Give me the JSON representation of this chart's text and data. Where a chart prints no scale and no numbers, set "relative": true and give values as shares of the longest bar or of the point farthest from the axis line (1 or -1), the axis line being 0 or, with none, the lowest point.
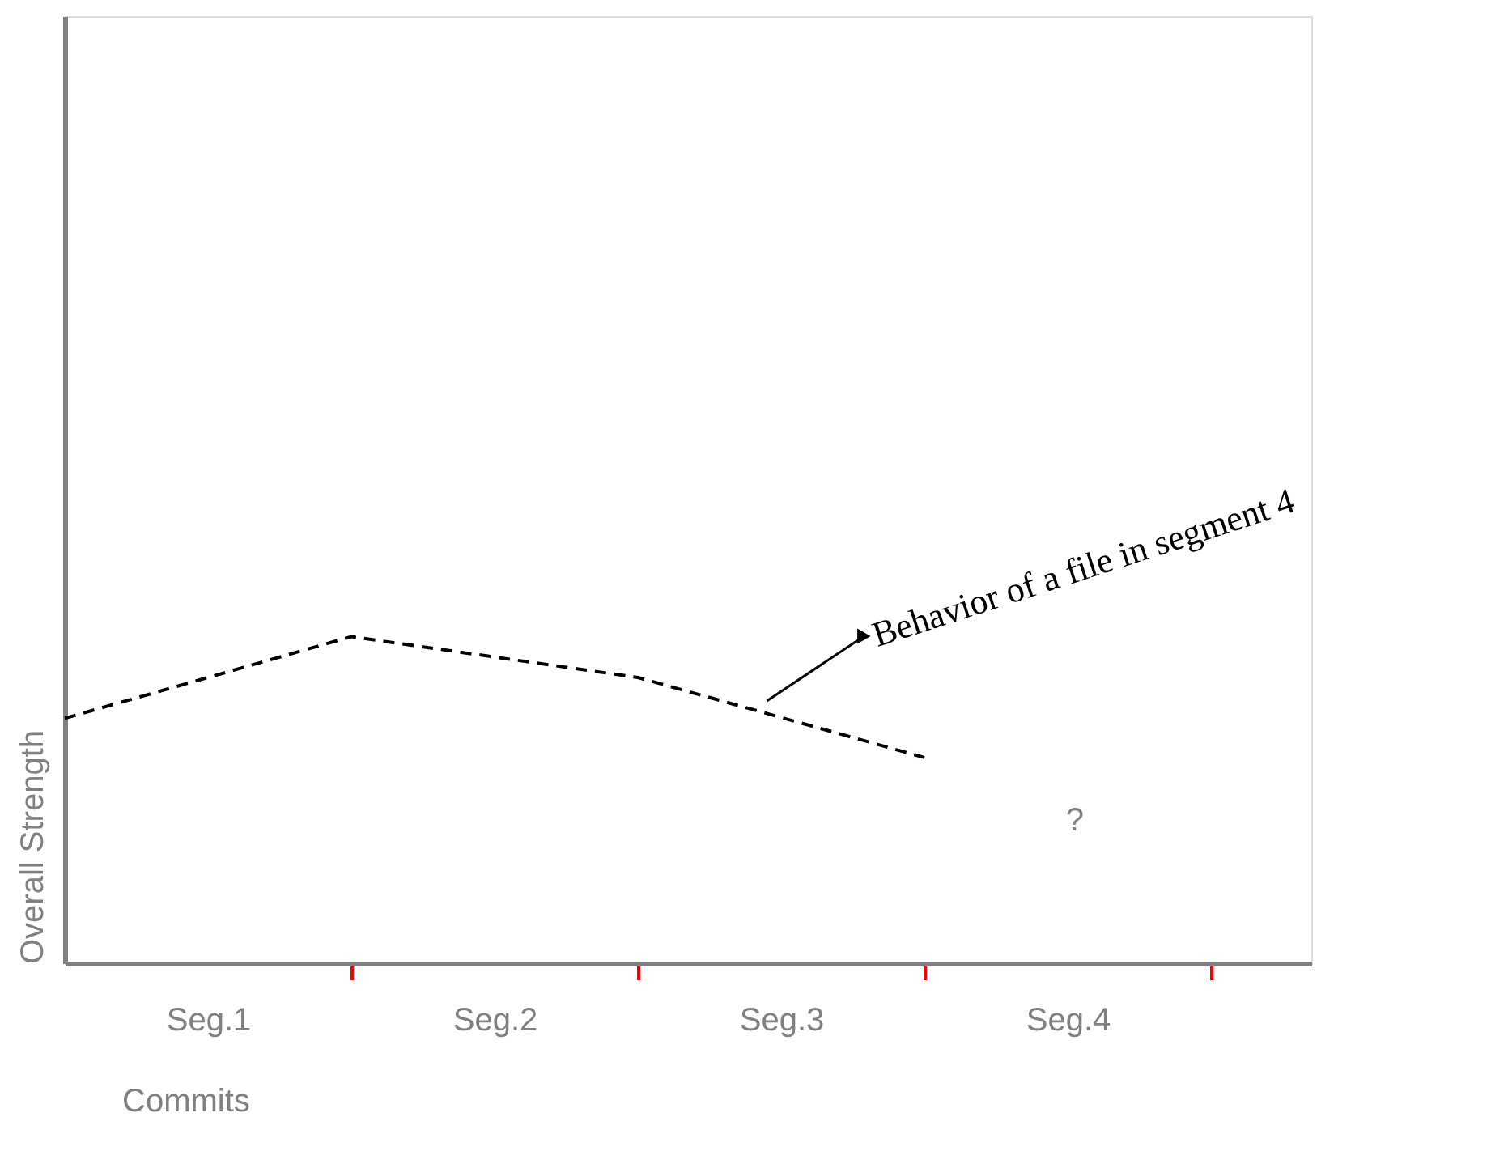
{
  "chart_data": {
    "type": "line",
    "relative": true,
    "xlabel": "Commits",
    "ylabel": "Overall Strength",
    "categories": [
      null,
      "Seg.1",
      null,
      "Seg.2",
      null,
      "Seg.3",
      null,
      "Seg.4",
      null
    ],
    "series": [
      {
        "color": "#000000",
        "values": [
          0.75,
          null,
          1,
          null,
          0.875,
          null,
          0.63,
          null,
          null
        ]
      }
    ],
    "annotations": [
      "Behavior of a file in segment 4",
      "?"
    ],
    "line_style": "dashed",
    "marker": "none",
    "grid": false
  }
}
